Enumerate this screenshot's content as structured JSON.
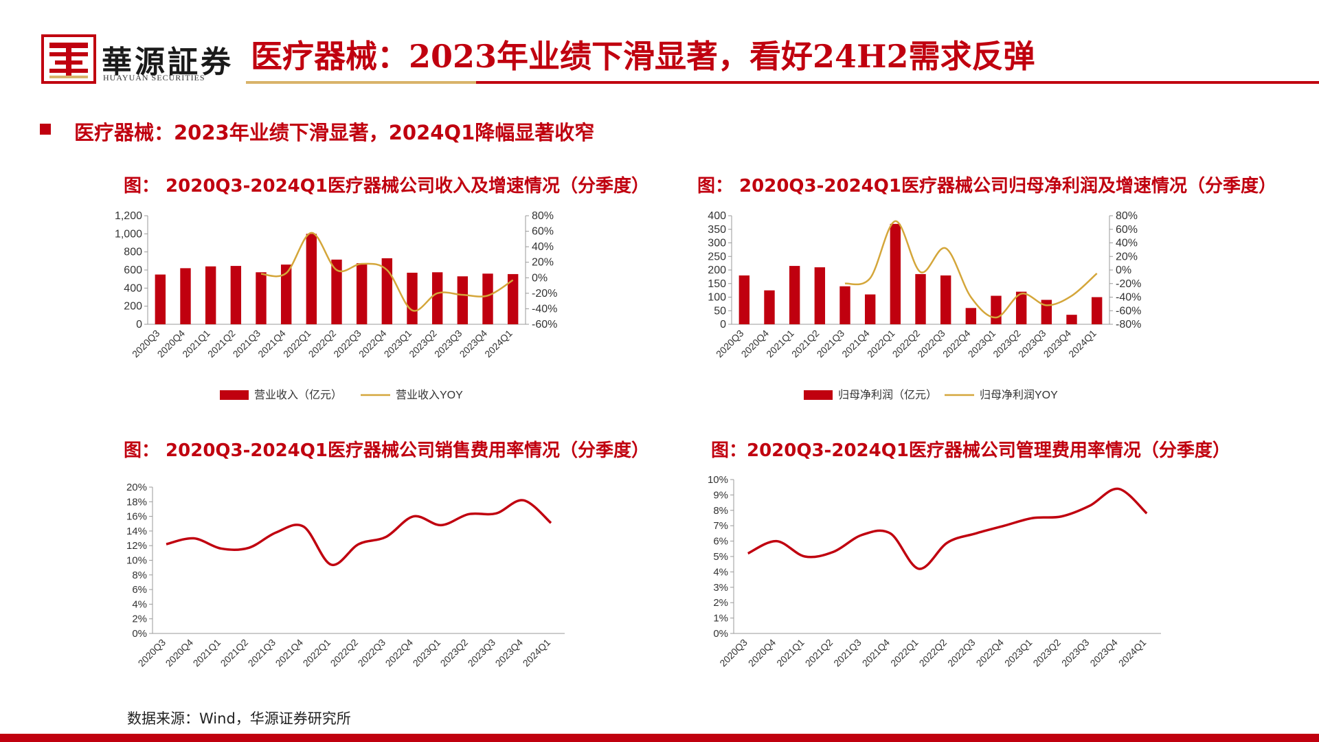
{
  "header": {
    "brand_cn": "華源証券",
    "brand_en": "HUAYUAN SECURITIES",
    "title": "医疗器械：2023年业绩下滑显著，看好24H2需求反弹"
  },
  "section": {
    "title": "医疗器械：2023年业绩下滑显著，2024Q1降幅显著收窄"
  },
  "source": "数据来源：Wind，华源证券研究所",
  "colors": {
    "red": "#c0000f",
    "gold": "#d4a63a"
  },
  "chart_data": [
    {
      "id": "revenue",
      "type": "bar",
      "title": "图： 2020Q3-2024Q1医疗器械公司收入及增速情况（分季度）",
      "categories": [
        "2020Q3",
        "2020Q4",
        "2021Q1",
        "2021Q2",
        "2021Q3",
        "2021Q4",
        "2022Q1",
        "2022Q2",
        "2022Q3",
        "2022Q4",
        "2023Q1",
        "2023Q2",
        "2023Q3",
        "2023Q4",
        "2024Q1"
      ],
      "series": [
        {
          "name": "营业收入（亿元）",
          "type": "bar",
          "axis": "left",
          "values": [
            550,
            620,
            640,
            645,
            575,
            660,
            1000,
            715,
            675,
            730,
            570,
            575,
            530,
            560,
            555
          ]
        },
        {
          "name": "营业收入YOY",
          "type": "line",
          "axis": "right",
          "values": [
            null,
            null,
            null,
            null,
            5,
            6,
            58,
            10,
            18,
            10,
            -42,
            -20,
            -22,
            -23,
            -3
          ]
        }
      ],
      "y_left": {
        "min": 0,
        "max": 1200,
        "ticks": [
          0,
          200,
          400,
          600,
          800,
          1000,
          1200
        ],
        "tick_labels": [
          "0",
          "200",
          "400",
          "600",
          "800",
          "1,000",
          "1,200"
        ]
      },
      "y_right": {
        "min": -60,
        "max": 80,
        "ticks": [
          -60,
          -40,
          -20,
          0,
          20,
          40,
          60,
          80
        ],
        "tick_labels": [
          "-60%",
          "-40%",
          "-20%",
          "0%",
          "20%",
          "40%",
          "60%",
          "80%"
        ]
      },
      "legend": "bottom"
    },
    {
      "id": "profit",
      "type": "bar",
      "title": "图： 2020Q3-2024Q1医疗器械公司归母净利润及增速情况（分季度）",
      "categories": [
        "2020Q3",
        "2020Q4",
        "2021Q1",
        "2021Q2",
        "2021Q3",
        "2021Q4",
        "2022Q1",
        "2022Q2",
        "2022Q3",
        "2022Q4",
        "2023Q1",
        "2023Q2",
        "2023Q3",
        "2023Q4",
        "2024Q1"
      ],
      "series": [
        {
          "name": "归母净利润（亿元）",
          "type": "bar",
          "axis": "left",
          "values": [
            180,
            125,
            215,
            210,
            140,
            110,
            370,
            185,
            180,
            60,
            105,
            120,
            90,
            35,
            100
          ]
        },
        {
          "name": "归母净利润YOY",
          "type": "line",
          "axis": "right",
          "values": [
            null,
            null,
            null,
            null,
            -20,
            -12,
            72,
            -3,
            32,
            -40,
            -70,
            -35,
            -52,
            -38,
            -5
          ]
        }
      ],
      "y_left": {
        "min": 0,
        "max": 400,
        "ticks": [
          0,
          50,
          100,
          150,
          200,
          250,
          300,
          350,
          400
        ],
        "tick_labels": [
          "0",
          "50",
          "100",
          "150",
          "200",
          "250",
          "300",
          "350",
          "400"
        ]
      },
      "y_right": {
        "min": -80,
        "max": 80,
        "ticks": [
          -80,
          -60,
          -40,
          -20,
          0,
          20,
          40,
          60,
          80
        ],
        "tick_labels": [
          "-80%",
          "-60%",
          "-40%",
          "-20%",
          "0%",
          "20%",
          "40%",
          "60%",
          "80%"
        ]
      },
      "legend": "bottom"
    },
    {
      "id": "sales_ratio",
      "type": "line",
      "title": "图： 2020Q3-2024Q1医疗器械公司销售费用率情况（分季度）",
      "categories": [
        "2020Q3",
        "2020Q4",
        "2021Q1",
        "2021Q2",
        "2021Q3",
        "2021Q4",
        "2022Q1",
        "2022Q2",
        "2022Q3",
        "2022Q4",
        "2023Q1",
        "2023Q2",
        "2023Q3",
        "2023Q4",
        "2024Q1"
      ],
      "series": [
        {
          "values": [
            12.2,
            13.0,
            11.6,
            11.7,
            13.8,
            14.6,
            9.4,
            12.2,
            13.2,
            16.0,
            14.8,
            16.3,
            16.4,
            18.2,
            15.1
          ]
        }
      ],
      "y": {
        "min": 0,
        "max": 20,
        "ticks": [
          0,
          2,
          4,
          6,
          8,
          10,
          12,
          14,
          16,
          18,
          20
        ],
        "tick_labels": [
          "0%",
          "2%",
          "4%",
          "6%",
          "8%",
          "10%",
          "12%",
          "14%",
          "16%",
          "18%",
          "20%"
        ]
      }
    },
    {
      "id": "admin_ratio",
      "type": "line",
      "title": "图：2020Q3-2024Q1医疗器械公司管理费用率情况（分季度）",
      "categories": [
        "2020Q3",
        "2020Q4",
        "2021Q1",
        "2021Q2",
        "2021Q3",
        "2021Q4",
        "2022Q1",
        "2022Q2",
        "2022Q3",
        "2022Q4",
        "2023Q1",
        "2023Q2",
        "2023Q3",
        "2023Q4",
        "2024Q1"
      ],
      "series": [
        {
          "values": [
            5.2,
            6.0,
            5.0,
            5.3,
            6.4,
            6.5,
            4.2,
            5.9,
            6.5,
            7.0,
            7.5,
            7.6,
            8.3,
            9.4,
            7.8
          ]
        }
      ],
      "y": {
        "min": 0,
        "max": 10,
        "ticks": [
          0,
          1,
          2,
          3,
          4,
          5,
          6,
          7,
          8,
          9,
          10
        ],
        "tick_labels": [
          "0%",
          "1%",
          "2%",
          "3%",
          "4%",
          "5%",
          "6%",
          "7%",
          "8%",
          "9%",
          "10%"
        ]
      }
    }
  ]
}
